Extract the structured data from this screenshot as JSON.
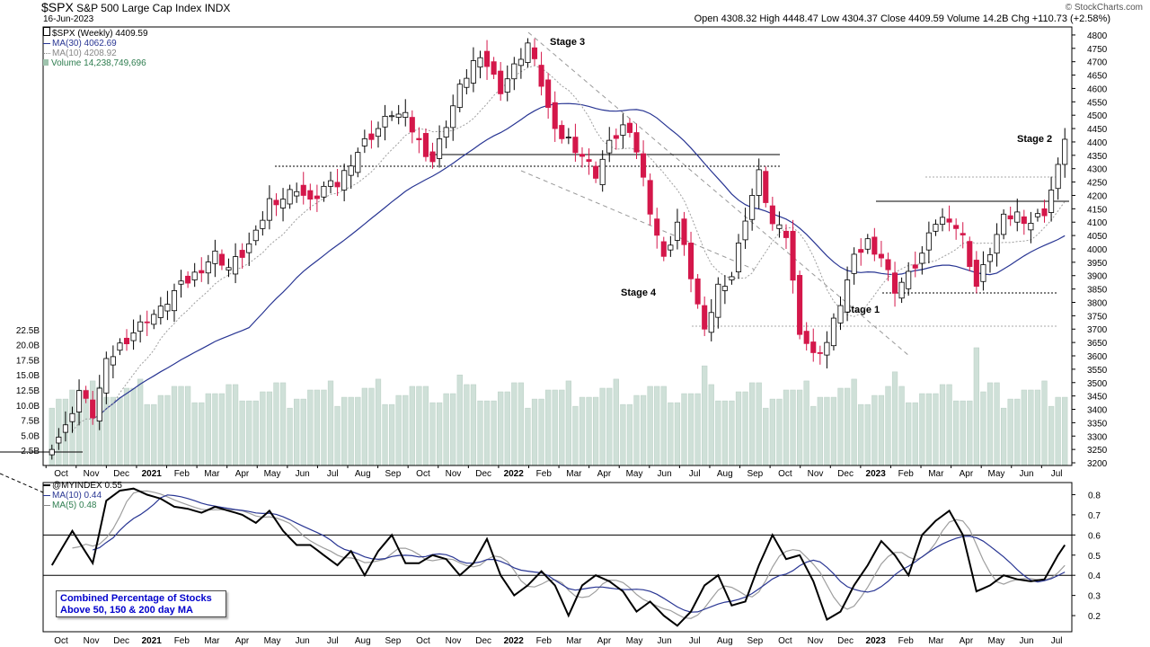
{
  "header": {
    "symbol": "$SPX",
    "name": "S&P 500 Large Cap Index",
    "exchange": "INDX",
    "date": "16-Jun-2023",
    "ohlc_text": "Open 4308.32  High 4448.47  Low 4304.37  Close 4409.59  Volume 14.2B  Chg +110.73 (+2.58%)",
    "watermark": "© StockCharts.com",
    "legend_price": "$SPX (Weekly) 4409.59",
    "legend_ma30": "MA(30) 4062.69",
    "legend_ma10": "MA(10) 4208.92",
    "legend_volume": "Volume 14,238,749,696",
    "legend_ind": "@MYINDEX 0.55",
    "legend_ind_ma10": "MA(10) 0.44",
    "legend_ind_ma5": "MA(5) 0.48",
    "indicator_note_line1": "Combined Percentage of Stocks",
    "indicator_note_line2": "Above 50, 150 & 200 day MA"
  },
  "colors": {
    "up_candle": "#ffffff",
    "down_candle": "#d4174a",
    "ma30": "#283593",
    "ma10": "#9e9e9e",
    "volume": "#cfe0d8",
    "indicator": "#000000",
    "indicator_ma10": "#283593",
    "indicator_ma5": "#9e9e9e",
    "legend_text": "#0000cc"
  },
  "chart_data": [
    {
      "type": "candlestick",
      "title": "$SPX S&P 500 Large Cap Index INDX (Weekly)",
      "y_ticks": [
        3200,
        3250,
        3300,
        3350,
        3400,
        3450,
        3500,
        3550,
        3600,
        3650,
        3700,
        3750,
        3800,
        3850,
        3900,
        3950,
        4000,
        4050,
        4100,
        4150,
        4200,
        4250,
        4300,
        4350,
        4400,
        4450,
        4500,
        4550,
        4600,
        4650,
        4700,
        4750,
        4800
      ],
      "ylim": [
        3190,
        4830
      ],
      "volume_ticks": [
        "2.5B",
        "5.0B",
        "7.5B",
        "10.0B",
        "12.5B",
        "15.0B",
        "17.5B",
        "20.0B",
        "22.5B"
      ],
      "volume_ylim": [
        0,
        25
      ],
      "x_labels": [
        "Oct",
        "Nov",
        "Dec",
        "2021",
        "Feb",
        "Mar",
        "Apr",
        "May",
        "Jun",
        "Jul",
        "Aug",
        "Sep",
        "Oct",
        "Nov",
        "Dec",
        "2022",
        "Feb",
        "Mar",
        "Apr",
        "May",
        "Jun",
        "Jul",
        "Aug",
        "Sep",
        "Oct",
        "Nov",
        "Dec",
        "2023",
        "Feb",
        "Mar",
        "Apr",
        "May",
        "Jun",
        "Jul"
      ],
      "annotations": [
        "Stage 3",
        "Stage 4",
        "Stage 1",
        "Stage 2"
      ],
      "close_anchors": [
        [
          0,
          3270
        ],
        [
          2,
          3330
        ],
        [
          4,
          3470
        ],
        [
          6,
          3380
        ],
        [
          8,
          3570
        ],
        [
          10,
          3640
        ],
        [
          12,
          3690
        ],
        [
          14,
          3740
        ],
        [
          16,
          3770
        ],
        [
          18,
          3840
        ],
        [
          20,
          3880
        ],
        [
          22,
          3930
        ],
        [
          24,
          3980
        ],
        [
          26,
          3930
        ],
        [
          28,
          3980
        ],
        [
          30,
          4050
        ],
        [
          32,
          4180
        ],
        [
          34,
          4190
        ],
        [
          36,
          4230
        ],
        [
          38,
          4170
        ],
        [
          40,
          4230
        ],
        [
          42,
          4240
        ],
        [
          44,
          4330
        ],
        [
          46,
          4400
        ],
        [
          48,
          4450
        ],
        [
          50,
          4510
        ],
        [
          52,
          4490
        ],
        [
          54,
          4400
        ],
        [
          56,
          4330
        ],
        [
          58,
          4470
        ],
        [
          60,
          4600
        ],
        [
          62,
          4700
        ],
        [
          64,
          4690
        ],
        [
          66,
          4600
        ],
        [
          68,
          4680
        ],
        [
          70,
          4770
        ],
        [
          72,
          4620
        ],
        [
          74,
          4430
        ],
        [
          76,
          4410
        ],
        [
          78,
          4350
        ],
        [
          80,
          4280
        ],
        [
          82,
          4390
        ],
        [
          84,
          4460
        ],
        [
          86,
          4370
        ],
        [
          88,
          4150
        ],
        [
          90,
          3960
        ],
        [
          92,
          4100
        ],
        [
          94,
          3900
        ],
        [
          96,
          3680
        ],
        [
          98,
          3860
        ],
        [
          100,
          3900
        ],
        [
          102,
          4120
        ],
        [
          104,
          4280
        ],
        [
          106,
          4090
        ],
        [
          108,
          4050
        ],
        [
          110,
          3700
        ],
        [
          112,
          3600
        ],
        [
          114,
          3650
        ],
        [
          116,
          3800
        ],
        [
          118,
          3960
        ],
        [
          120,
          4030
        ],
        [
          122,
          3970
        ],
        [
          124,
          3850
        ],
        [
          126,
          3900
        ],
        [
          128,
          3980
        ],
        [
          130,
          4100
        ],
        [
          132,
          4120
        ],
        [
          134,
          4040
        ],
        [
          136,
          3860
        ],
        [
          138,
          3990
        ],
        [
          140,
          4110
        ],
        [
          142,
          4130
        ],
        [
          144,
          4100
        ],
        [
          146,
          4140
        ],
        [
          148,
          4300
        ],
        [
          149,
          4410
        ]
      ]
    },
    {
      "type": "line",
      "title": "@MYINDEX",
      "y_ticks": [
        0.2,
        0.3,
        0.4,
        0.5,
        0.6,
        0.7,
        0.8
      ],
      "ylim": [
        0.12,
        0.86
      ],
      "reference_lines": [
        0.6,
        0.4
      ],
      "x_labels": [
        "Oct",
        "Nov",
        "Dec",
        "2021",
        "Feb",
        "Mar",
        "Apr",
        "May",
        "Jun",
        "Jul",
        "Aug",
        "Sep",
        "Oct",
        "Nov",
        "Dec",
        "2022",
        "Feb",
        "Mar",
        "Apr",
        "May",
        "Jun",
        "Jul",
        "Aug",
        "Sep",
        "Oct",
        "Nov",
        "Dec",
        "2023",
        "Feb",
        "Mar",
        "Apr",
        "May",
        "Jun",
        "Jul"
      ],
      "anchors": [
        [
          0,
          0.45
        ],
        [
          3,
          0.62
        ],
        [
          6,
          0.46
        ],
        [
          8,
          0.77
        ],
        [
          10,
          0.82
        ],
        [
          12,
          0.83
        ],
        [
          14,
          0.8
        ],
        [
          16,
          0.78
        ],
        [
          18,
          0.74
        ],
        [
          20,
          0.73
        ],
        [
          22,
          0.71
        ],
        [
          24,
          0.74
        ],
        [
          26,
          0.72
        ],
        [
          28,
          0.7
        ],
        [
          30,
          0.66
        ],
        [
          32,
          0.72
        ],
        [
          34,
          0.62
        ],
        [
          36,
          0.55
        ],
        [
          38,
          0.55
        ],
        [
          40,
          0.5
        ],
        [
          42,
          0.45
        ],
        [
          44,
          0.52
        ],
        [
          46,
          0.4
        ],
        [
          48,
          0.52
        ],
        [
          50,
          0.6
        ],
        [
          52,
          0.46
        ],
        [
          54,
          0.46
        ],
        [
          56,
          0.5
        ],
        [
          58,
          0.48
        ],
        [
          60,
          0.4
        ],
        [
          62,
          0.46
        ],
        [
          64,
          0.58
        ],
        [
          66,
          0.4
        ],
        [
          68,
          0.3
        ],
        [
          70,
          0.35
        ],
        [
          72,
          0.42
        ],
        [
          74,
          0.35
        ],
        [
          76,
          0.2
        ],
        [
          78,
          0.35
        ],
        [
          80,
          0.4
        ],
        [
          82,
          0.37
        ],
        [
          84,
          0.32
        ],
        [
          86,
          0.22
        ],
        [
          88,
          0.27
        ],
        [
          90,
          0.2
        ],
        [
          92,
          0.15
        ],
        [
          94,
          0.22
        ],
        [
          96,
          0.35
        ],
        [
          98,
          0.4
        ],
        [
          100,
          0.25
        ],
        [
          102,
          0.27
        ],
        [
          104,
          0.45
        ],
        [
          106,
          0.6
        ],
        [
          108,
          0.48
        ],
        [
          110,
          0.5
        ],
        [
          112,
          0.37
        ],
        [
          114,
          0.18
        ],
        [
          116,
          0.22
        ],
        [
          118,
          0.35
        ],
        [
          120,
          0.45
        ],
        [
          122,
          0.57
        ],
        [
          124,
          0.5
        ],
        [
          126,
          0.4
        ],
        [
          128,
          0.6
        ],
        [
          130,
          0.67
        ],
        [
          132,
          0.72
        ],
        [
          134,
          0.6
        ],
        [
          136,
          0.32
        ],
        [
          138,
          0.35
        ],
        [
          140,
          0.4
        ],
        [
          142,
          0.38
        ],
        [
          144,
          0.37
        ],
        [
          146,
          0.38
        ],
        [
          148,
          0.5
        ],
        [
          149,
          0.55
        ]
      ]
    }
  ]
}
